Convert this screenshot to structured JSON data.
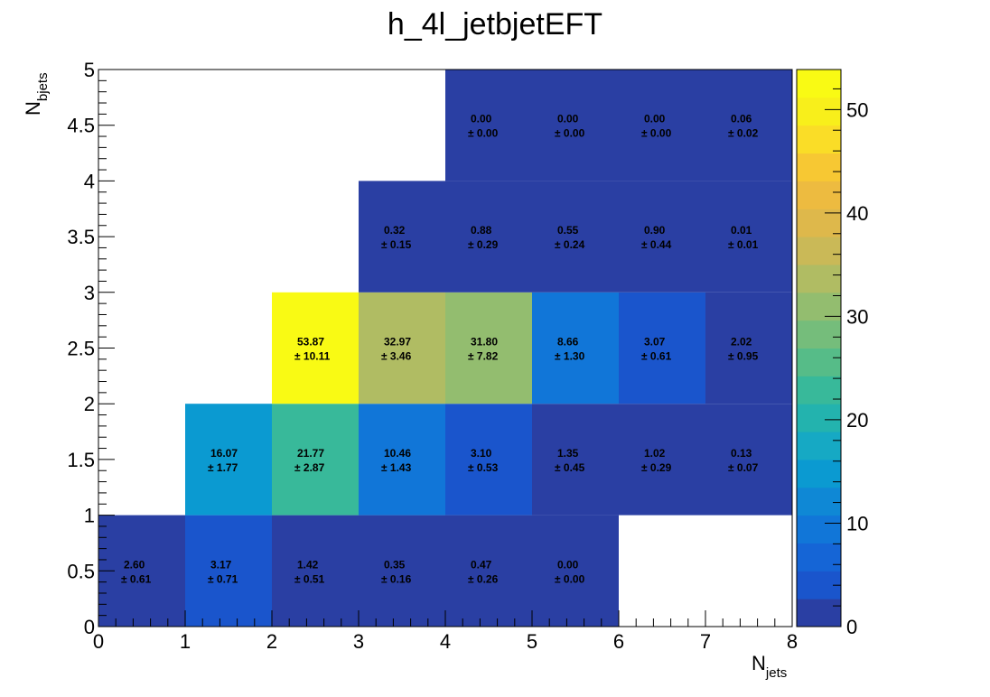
{
  "chart_data": {
    "type": "heatmap",
    "title": "h_4l_jetbjetEFT",
    "xlabel": {
      "main": "N",
      "sub": "jets"
    },
    "ylabel": {
      "main": "N",
      "sub": "bjets"
    },
    "xlim": [
      0,
      8
    ],
    "ylim": [
      0,
      5
    ],
    "x_bin_width": 1,
    "y_bin_width": 1,
    "x_ticks": [
      "0",
      "1",
      "2",
      "3",
      "4",
      "5",
      "6",
      "7",
      "8"
    ],
    "y_ticks": [
      "0",
      "0.5",
      "1",
      "1.5",
      "2",
      "2.5",
      "3",
      "3.5",
      "4",
      "4.5",
      "5"
    ],
    "colorbar": {
      "min": 0,
      "max": 53.87,
      "ticks": [
        "0",
        "10",
        "20",
        "30",
        "40",
        "50"
      ]
    },
    "cells": [
      {
        "x": 0,
        "y": 0,
        "value": "2.60",
        "error": "± 0.61"
      },
      {
        "x": 1,
        "y": 0,
        "value": "3.17",
        "error": "± 0.71"
      },
      {
        "x": 2,
        "y": 0,
        "value": "1.42",
        "error": "± 0.51"
      },
      {
        "x": 3,
        "y": 0,
        "value": "0.35",
        "error": "± 0.16"
      },
      {
        "x": 4,
        "y": 0,
        "value": "0.47",
        "error": "± 0.26"
      },
      {
        "x": 5,
        "y": 0,
        "value": "0.00",
        "error": "± 0.00"
      },
      {
        "x": 1,
        "y": 1,
        "value": "16.07",
        "error": "± 1.77"
      },
      {
        "x": 2,
        "y": 1,
        "value": "21.77",
        "error": "± 2.87"
      },
      {
        "x": 3,
        "y": 1,
        "value": "10.46",
        "error": "± 1.43"
      },
      {
        "x": 4,
        "y": 1,
        "value": "3.10",
        "error": "± 0.53"
      },
      {
        "x": 5,
        "y": 1,
        "value": "1.35",
        "error": "± 0.45"
      },
      {
        "x": 6,
        "y": 1,
        "value": "1.02",
        "error": "± 0.29"
      },
      {
        "x": 7,
        "y": 1,
        "value": "0.13",
        "error": "± 0.07"
      },
      {
        "x": 2,
        "y": 2,
        "value": "53.87",
        "error": "± 10.11"
      },
      {
        "x": 3,
        "y": 2,
        "value": "32.97",
        "error": "± 3.46"
      },
      {
        "x": 4,
        "y": 2,
        "value": "31.80",
        "error": "± 7.82"
      },
      {
        "x": 5,
        "y": 2,
        "value": "8.66",
        "error": "± 1.30"
      },
      {
        "x": 6,
        "y": 2,
        "value": "3.07",
        "error": "± 0.61"
      },
      {
        "x": 7,
        "y": 2,
        "value": "2.02",
        "error": "± 0.95"
      },
      {
        "x": 3,
        "y": 3,
        "value": "0.32",
        "error": "± 0.15"
      },
      {
        "x": 4,
        "y": 3,
        "value": "0.88",
        "error": "± 0.29"
      },
      {
        "x": 5,
        "y": 3,
        "value": "0.55",
        "error": "± 0.24"
      },
      {
        "x": 6,
        "y": 3,
        "value": "0.90",
        "error": "± 0.44"
      },
      {
        "x": 7,
        "y": 3,
        "value": "0.01",
        "error": "± 0.01"
      },
      {
        "x": 4,
        "y": 4,
        "value": "0.00",
        "error": "± 0.00"
      },
      {
        "x": 5,
        "y": 4,
        "value": "0.00",
        "error": "± 0.00"
      },
      {
        "x": 6,
        "y": 4,
        "value": "0.00",
        "error": "± 0.00"
      },
      {
        "x": 7,
        "y": 4,
        "value": "0.06",
        "error": "± 0.02"
      }
    ],
    "palette": [
      "#2a3fa3",
      "#1a55cc",
      "#1565d6",
      "#1176d8",
      "#0f88d5",
      "#0b9ad1",
      "#16a9c4",
      "#23b3ae",
      "#38b99a",
      "#56bc88",
      "#75bd7b",
      "#93bd6f",
      "#b0bc63",
      "#cab957",
      "#deb84b",
      "#edbb40",
      "#f7c833",
      "#fadd27",
      "#f8ef1b",
      "#f9fa14"
    ]
  }
}
